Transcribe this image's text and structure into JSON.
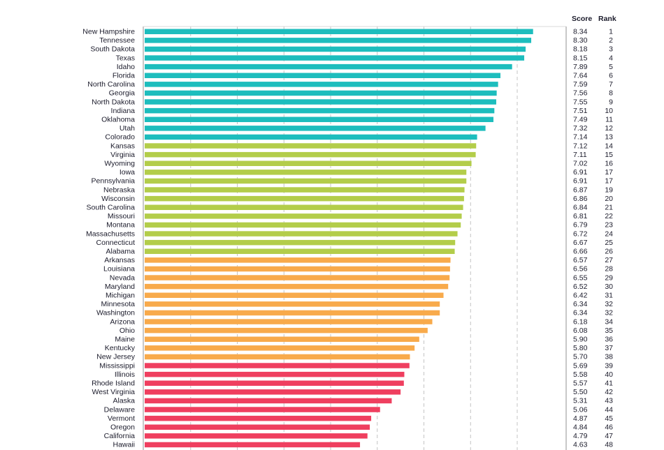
{
  "chart_data": {
    "type": "bar",
    "orientation": "horizontal",
    "title": "",
    "xlabel": "",
    "ylabel": "",
    "xlim": [
      0,
      9
    ],
    "grid": true,
    "column_headers": {
      "score": "Score",
      "rank": "Rank"
    },
    "group_colors": [
      "#1dbdbd",
      "#b3cd4a",
      "#f8aa4b",
      "#ef3f5f"
    ],
    "rows": [
      {
        "state": "New Hampshire",
        "score": "8.34",
        "rank": "1",
        "group": 0
      },
      {
        "state": "Tennessee",
        "score": "8.30",
        "rank": "2",
        "group": 0
      },
      {
        "state": "South Dakota",
        "score": "8.18",
        "rank": "3",
        "group": 0
      },
      {
        "state": "Texas",
        "score": "8.15",
        "rank": "4",
        "group": 0
      },
      {
        "state": "Idaho",
        "score": "7.89",
        "rank": "5",
        "group": 0
      },
      {
        "state": "Florida",
        "score": "7.64",
        "rank": "6",
        "group": 0
      },
      {
        "state": "North Carolina",
        "score": "7.59",
        "rank": "7",
        "group": 0
      },
      {
        "state": "Georgia",
        "score": "7.56",
        "rank": "8",
        "group": 0
      },
      {
        "state": "North Dakota",
        "score": "7.55",
        "rank": "9",
        "group": 0
      },
      {
        "state": "Indiana",
        "score": "7.51",
        "rank": "10",
        "group": 0
      },
      {
        "state": "Oklahoma",
        "score": "7.49",
        "rank": "11",
        "group": 0
      },
      {
        "state": "Utah",
        "score": "7.32",
        "rank": "12",
        "group": 0
      },
      {
        "state": "Colorado",
        "score": "7.14",
        "rank": "13",
        "group": 0
      },
      {
        "state": "Kansas",
        "score": "7.12",
        "rank": "14",
        "group": 1
      },
      {
        "state": "Virginia",
        "score": "7.11",
        "rank": "15",
        "group": 1
      },
      {
        "state": "Wyoming",
        "score": "7.02",
        "rank": "16",
        "group": 1
      },
      {
        "state": "Iowa",
        "score": "6.91",
        "rank": "17",
        "group": 1
      },
      {
        "state": "Pennsylvania",
        "score": "6.91",
        "rank": "17",
        "group": 1
      },
      {
        "state": "Nebraska",
        "score": "6.87",
        "rank": "19",
        "group": 1
      },
      {
        "state": "Wisconsin",
        "score": "6.86",
        "rank": "20",
        "group": 1
      },
      {
        "state": "South Carolina",
        "score": "6.84",
        "rank": "21",
        "group": 1
      },
      {
        "state": "Missouri",
        "score": "6.81",
        "rank": "22",
        "group": 1
      },
      {
        "state": "Montana",
        "score": "6.79",
        "rank": "23",
        "group": 1
      },
      {
        "state": "Massachusetts",
        "score": "6.72",
        "rank": "24",
        "group": 1
      },
      {
        "state": "Connecticut",
        "score": "6.67",
        "rank": "25",
        "group": 1
      },
      {
        "state": "Alabama",
        "score": "6.66",
        "rank": "26",
        "group": 1
      },
      {
        "state": "Arkansas",
        "score": "6.57",
        "rank": "27",
        "group": 2
      },
      {
        "state": "Louisiana",
        "score": "6.56",
        "rank": "28",
        "group": 2
      },
      {
        "state": "Nevada",
        "score": "6.55",
        "rank": "29",
        "group": 2
      },
      {
        "state": "Maryland",
        "score": "6.52",
        "rank": "30",
        "group": 2
      },
      {
        "state": "Michigan",
        "score": "6.42",
        "rank": "31",
        "group": 2
      },
      {
        "state": "Minnesota",
        "score": "6.34",
        "rank": "32",
        "group": 2
      },
      {
        "state": "Washington",
        "score": "6.34",
        "rank": "32",
        "group": 2
      },
      {
        "state": "Arizona",
        "score": "6.18",
        "rank": "34",
        "group": 2
      },
      {
        "state": "Ohio",
        "score": "6.08",
        "rank": "35",
        "group": 2
      },
      {
        "state": "Maine",
        "score": "5.90",
        "rank": "36",
        "group": 2
      },
      {
        "state": "Kentucky",
        "score": "5.80",
        "rank": "37",
        "group": 2
      },
      {
        "state": "New Jersey",
        "score": "5.70",
        "rank": "38",
        "group": 2
      },
      {
        "state": "Mississippi",
        "score": "5.69",
        "rank": "39",
        "group": 3
      },
      {
        "state": "Illinois",
        "score": "5.58",
        "rank": "40",
        "group": 3
      },
      {
        "state": "Rhode Island",
        "score": "5.57",
        "rank": "41",
        "group": 3
      },
      {
        "state": "West Virginia",
        "score": "5.50",
        "rank": "42",
        "group": 3
      },
      {
        "state": "Alaska",
        "score": "5.31",
        "rank": "43",
        "group": 3
      },
      {
        "state": "Delaware",
        "score": "5.06",
        "rank": "44",
        "group": 3
      },
      {
        "state": "Vermont",
        "score": "4.87",
        "rank": "45",
        "group": 3
      },
      {
        "state": "Oregon",
        "score": "4.84",
        "rank": "46",
        "group": 3
      },
      {
        "state": "California",
        "score": "4.79",
        "rank": "47",
        "group": 3
      },
      {
        "state": "Hawaii",
        "score": "4.63",
        "rank": "48",
        "group": 3
      }
    ]
  }
}
